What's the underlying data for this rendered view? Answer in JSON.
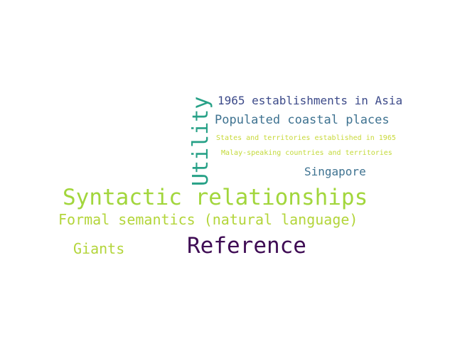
{
  "word_cloud": {
    "words": [
      {
        "id": "syntactic",
        "text": "Syntactic relationships",
        "color": "#a2d63c",
        "weight": 1.0
      },
      {
        "id": "reference",
        "text": "Reference",
        "color": "#3f0c54",
        "weight": 0.92
      },
      {
        "id": "utility",
        "text": "Utility",
        "color": "#27a187",
        "weight": 0.85
      },
      {
        "id": "formal",
        "text": "Formal semantics (natural language)",
        "color": "#b3d53a",
        "weight": 0.7
      },
      {
        "id": "giants",
        "text": "Giants",
        "color": "#b3d53a",
        "weight": 0.62
      },
      {
        "id": "coastal",
        "text": "Populated coastal places",
        "color": "#3e7290",
        "weight": 0.55
      },
      {
        "id": "est-asia",
        "text": "1965 establishments in Asia",
        "color": "#3c4a89",
        "weight": 0.52
      },
      {
        "id": "singapore",
        "text": "Singapore",
        "color": "#3e7290",
        "weight": 0.5
      },
      {
        "id": "states",
        "text": "States and territories established in 1965",
        "color": "#c8d93a",
        "weight": 0.3
      },
      {
        "id": "malay",
        "text": "Malay-speaking countries and territories",
        "color": "#c3da3a",
        "weight": 0.3
      }
    ]
  }
}
